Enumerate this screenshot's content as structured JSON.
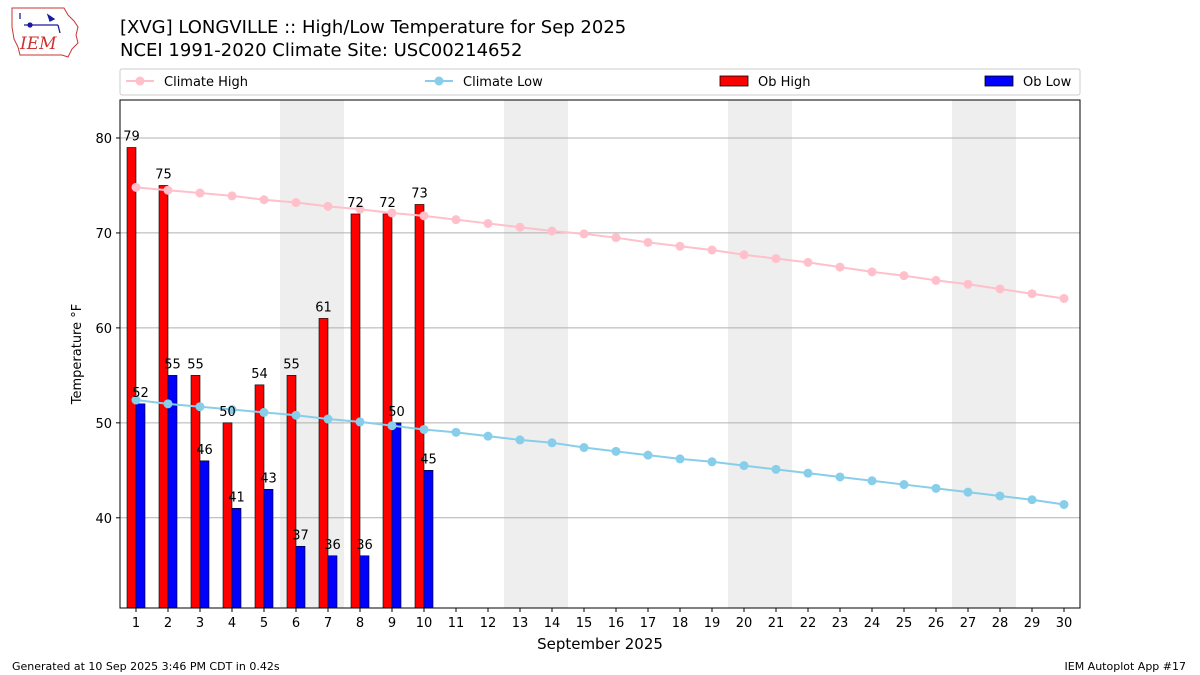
{
  "header": {
    "title": "[XVG] LONGVILLE :: High/Low Temperature for Sep 2025",
    "subtitle": "NCEI 1991-2020 Climate Site: USC00214652"
  },
  "logo": {
    "text": "IEM",
    "icon": "iowa-state-outline-icon"
  },
  "footer": {
    "left": "Generated at 10 Sep 2025 3:46 PM CDT in 0.42s",
    "right": "IEM Autoplot App #17"
  },
  "colors": {
    "ob_high": "#ff0000",
    "ob_low": "#0000ff",
    "climate_high": "#ffc0cb",
    "climate_low": "#87ceeb",
    "weekend_shade": "#eeeeee",
    "grid": "#b0b0b0"
  },
  "chart_data": {
    "type": "bar",
    "xlabel": "September 2025",
    "ylabel": "Temperature °F",
    "ylim": [
      30.5,
      84
    ],
    "yticks": [
      40,
      50,
      60,
      70,
      80
    ],
    "grid": "horizontal",
    "legend_position": "top",
    "days": [
      1,
      2,
      3,
      4,
      5,
      6,
      7,
      8,
      9,
      10,
      11,
      12,
      13,
      14,
      15,
      16,
      17,
      18,
      19,
      20,
      21,
      22,
      23,
      24,
      25,
      26,
      27,
      28,
      29,
      30
    ],
    "shaded_weekends": [
      [
        6,
        7
      ],
      [
        13,
        14
      ],
      [
        20,
        21
      ],
      [
        27,
        28
      ]
    ],
    "series": [
      {
        "name": "Climate High",
        "kind": "line",
        "values": [
          74.8,
          74.5,
          74.2,
          73.9,
          73.5,
          73.2,
          72.8,
          72.5,
          72.1,
          71.8,
          71.4,
          71.0,
          70.6,
          70.2,
          69.9,
          69.5,
          69.0,
          68.6,
          68.2,
          67.7,
          67.3,
          66.9,
          66.4,
          65.9,
          65.5,
          65.0,
          64.6,
          64.1,
          63.6,
          63.1
        ]
      },
      {
        "name": "Climate Low",
        "kind": "line",
        "values": [
          52.4,
          52.0,
          51.7,
          51.4,
          51.1,
          50.8,
          50.4,
          50.1,
          49.7,
          49.3,
          49.0,
          48.6,
          48.2,
          47.9,
          47.4,
          47.0,
          46.6,
          46.2,
          45.9,
          45.5,
          45.1,
          44.7,
          44.3,
          43.9,
          43.5,
          43.1,
          42.7,
          42.3,
          41.9,
          41.4
        ]
      },
      {
        "name": "Ob High",
        "kind": "bar",
        "values": [
          79,
          75,
          55,
          50,
          54,
          55,
          61,
          72,
          72,
          73
        ]
      },
      {
        "name": "Ob Low",
        "kind": "bar",
        "values": [
          52,
          55,
          46,
          41,
          43,
          37,
          36,
          36,
          50,
          45
        ]
      }
    ]
  }
}
